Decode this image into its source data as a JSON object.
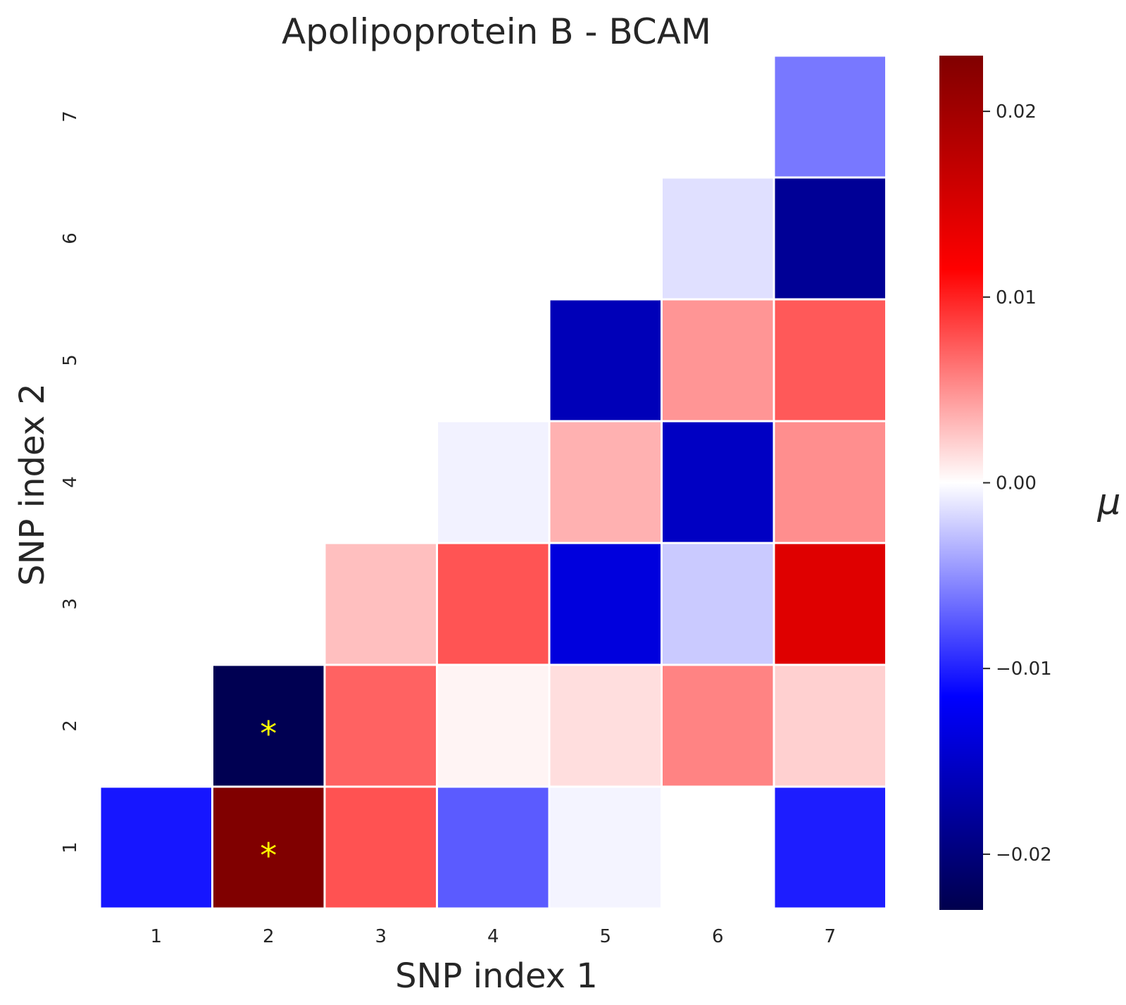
{
  "chart_data": {
    "type": "heatmap",
    "title": "Apolipoprotein B - BCAM",
    "xlabel": "SNP index 1",
    "ylabel": "SNP index 2",
    "x_categories": [
      "1",
      "2",
      "3",
      "4",
      "5",
      "6",
      "7"
    ],
    "y_categories": [
      "1",
      "2",
      "3",
      "4",
      "5",
      "6",
      "7"
    ],
    "cells": [
      {
        "x": 1,
        "y": 1,
        "value": -0.0105
      },
      {
        "x": 2,
        "y": 1,
        "value": 0.023,
        "marker": "*"
      },
      {
        "x": 3,
        "y": 1,
        "value": 0.0078
      },
      {
        "x": 4,
        "y": 1,
        "value": -0.0074
      },
      {
        "x": 5,
        "y": 1,
        "value": -0.0005
      },
      {
        "x": 6,
        "y": 1,
        "value": 0.0
      },
      {
        "x": 7,
        "y": 1,
        "value": -0.0102
      },
      {
        "x": 2,
        "y": 2,
        "value": -0.0227,
        "marker": "*"
      },
      {
        "x": 3,
        "y": 2,
        "value": 0.0071
      },
      {
        "x": 4,
        "y": 2,
        "value": 0.0005
      },
      {
        "x": 5,
        "y": 2,
        "value": 0.0015
      },
      {
        "x": 6,
        "y": 2,
        "value": 0.0056
      },
      {
        "x": 7,
        "y": 2,
        "value": 0.0021
      },
      {
        "x": 3,
        "y": 3,
        "value": 0.0029
      },
      {
        "x": 4,
        "y": 3,
        "value": 0.0077
      },
      {
        "x": 5,
        "y": 3,
        "value": -0.0137
      },
      {
        "x": 6,
        "y": 3,
        "value": -0.0024
      },
      {
        "x": 7,
        "y": 3,
        "value": 0.0144
      },
      {
        "x": 4,
        "y": 4,
        "value": -0.0006
      },
      {
        "x": 5,
        "y": 4,
        "value": 0.0035
      },
      {
        "x": 6,
        "y": 4,
        "value": -0.0154
      },
      {
        "x": 7,
        "y": 4,
        "value": 0.0051
      },
      {
        "x": 5,
        "y": 5,
        "value": -0.0161
      },
      {
        "x": 6,
        "y": 5,
        "value": 0.0048
      },
      {
        "x": 7,
        "y": 5,
        "value": 0.0075
      },
      {
        "x": 6,
        "y": 6,
        "value": -0.0014
      },
      {
        "x": 7,
        "y": 6,
        "value": -0.0183
      },
      {
        "x": 7,
        "y": 7,
        "value": -0.0061
      }
    ],
    "colorbar": {
      "label": "μ",
      "vmin": -0.023,
      "vmax": 0.023,
      "ticks": [
        0.02,
        0.01,
        0.0,
        -0.01,
        -0.02
      ],
      "tick_labels": [
        "0.02",
        "0.01",
        "0.00",
        "−0.01",
        "−0.02"
      ],
      "colormap": "seismic"
    },
    "grid": false
  }
}
